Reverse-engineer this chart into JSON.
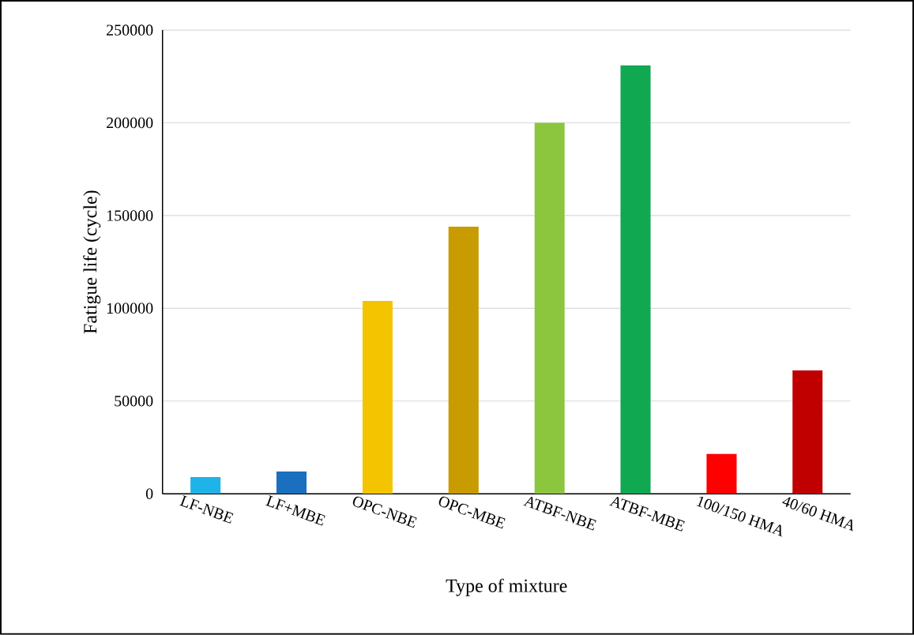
{
  "chart_data": {
    "type": "bar",
    "categories": [
      "LF-NBE",
      "LF+MBE",
      "OPC-NBE",
      "OPC-MBE",
      "ATBF-NBE",
      "ATBF-MBE",
      "100/150 HMA",
      "40/60 HMA"
    ],
    "values": [
      9000,
      12000,
      104000,
      144000,
      200000,
      231000,
      21500,
      66500
    ],
    "colors": [
      "#1fb4e8",
      "#1a6fbf",
      "#f5c400",
      "#c89b00",
      "#8cc63f",
      "#10a850",
      "#ff0000",
      "#c00000"
    ],
    "xlabel": "Type of mixture",
    "ylabel": "Fatigue life (cycle)",
    "ylim": [
      0,
      250000
    ],
    "yticks": [
      0,
      50000,
      100000,
      150000,
      200000,
      250000
    ],
    "grid": "y"
  }
}
